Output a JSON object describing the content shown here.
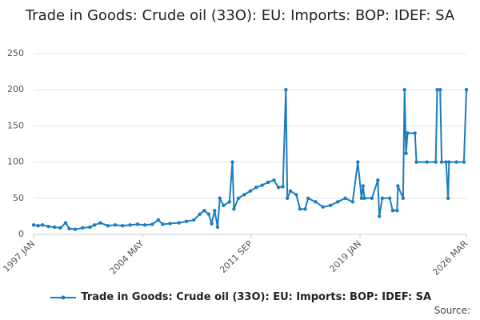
{
  "chart_data": {
    "type": "line",
    "title": "Trade in Goods: Crude oil (33O): EU: Imports: BOP: IDEF: SA",
    "x": [
      1997,
      1997.3,
      1997.6,
      1998,
      1998.4,
      1998.8,
      1999.16,
      1999.4,
      1999.8,
      2000.3,
      2000.8,
      2001.1,
      2001.5,
      2002,
      2002.5,
      2003,
      2003.5,
      2004,
      2004.5,
      2005,
      2005.4,
      2005.7,
      2006.2,
      2006.8,
      2007.3,
      2007.8,
      2008.2,
      2008.5,
      2008.8,
      2009.0,
      2009.2,
      2009.4,
      2009.55,
      2009.8,
      2010.2,
      2010.4,
      2010.5,
      2010.8,
      2011.2,
      2011.6,
      2012,
      2012.4,
      2012.8,
      2013.2,
      2013.5,
      2013.8,
      2014.0,
      2014.1,
      2014.3,
      2014.7,
      2014.95,
      2015.3,
      2015.5,
      2016,
      2016.5,
      2017,
      2017.5,
      2018,
      2018.5,
      2018.85,
      2019.1,
      2019.2,
      2019.3,
      2019.8,
      2020.2,
      2020.3,
      2020.5,
      2021,
      2021.2,
      2021.5,
      2021.55,
      2021.9,
      2022.0,
      2022.1,
      2022.2,
      2022.7,
      2022.8,
      2023.5,
      2024.1,
      2024.2,
      2024.4,
      2024.5,
      2024.8,
      2024.93,
      2025.0,
      2025.5,
      2026.0,
      2026.167
    ],
    "series": [
      {
        "name": "Trade in Goods: Crude oil (33O): EU: Imports: BOP: IDEF: SA",
        "color": "#1a7dc0",
        "values": [
          13,
          12,
          13,
          11,
          10,
          9,
          16,
          8,
          7,
          9,
          10,
          13,
          16,
          12,
          13,
          12,
          13,
          14,
          13,
          14,
          20,
          14,
          15,
          16,
          18,
          20,
          28,
          33,
          28,
          15,
          33,
          10,
          50,
          40,
          45,
          100,
          35,
          50,
          55,
          60,
          65,
          68,
          72,
          75,
          65,
          66,
          200,
          50,
          60,
          55,
          35,
          35,
          50,
          45,
          38,
          40,
          45,
          50,
          45,
          100,
          50,
          67,
          50,
          50,
          75,
          25,
          50,
          50,
          33,
          33,
          67,
          50,
          200,
          112,
          140,
          140,
          100,
          100,
          100,
          200,
          200,
          100,
          100,
          50,
          100,
          100,
          100,
          200
        ]
      }
    ],
    "xlim": [
      1997,
      2026.167
    ],
    "xticks": [
      {
        "value": 1997,
        "label": "1997 JAN"
      },
      {
        "value": 2004.333,
        "label": "2004 MAY"
      },
      {
        "value": 2011.667,
        "label": "2011 SEP"
      },
      {
        "value": 2019,
        "label": "2019 JAN"
      },
      {
        "value": 2026.167,
        "label": "2026 MAR"
      }
    ],
    "ylim": [
      0,
      250
    ],
    "yticks": [
      0,
      50,
      100,
      150,
      200,
      250
    ],
    "grid": true,
    "source": "Source:"
  }
}
